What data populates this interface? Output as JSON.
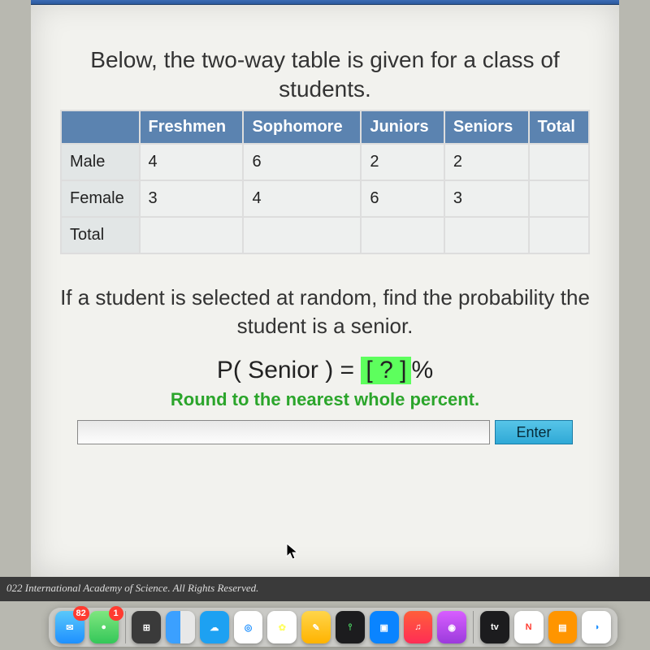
{
  "heading1": "Below, the two-way table is given for a class of students.",
  "table": {
    "columns": [
      "",
      "Freshmen",
      "Sophomore",
      "Juniors",
      "Seniors",
      "Total"
    ],
    "rows": [
      [
        "Male",
        "4",
        "6",
        "2",
        "2",
        ""
      ],
      [
        "Female",
        "3",
        "4",
        "6",
        "3",
        ""
      ],
      [
        "Total",
        "",
        "",
        "",
        "",
        ""
      ]
    ],
    "header_bg": "#5b83b0",
    "header_fg": "#ffffff",
    "cell_bg": "#eef0ef",
    "rowhead_bg": "#e2e6e6",
    "border_color": "#dddddd",
    "font_size": 20
  },
  "heading2": "If a student is selected at random, find the probability the student is a senior.",
  "formula_prefix": "P( Senior ) = ",
  "formula_answer_placeholder": "[ ? ]",
  "formula_suffix": "%",
  "hint": "Round to the nearest whole percent.",
  "enter_label": "Enter",
  "answer_value": "",
  "copyright": "022 International Academy of Science. All Rights Reserved.",
  "answerbox_bg": "#5dff5d",
  "hint_color": "#2ba52b",
  "screen_bg": "#f2f2ee",
  "dock": {
    "apps": [
      {
        "name": "mail-icon",
        "bg": "linear-gradient(#5ac8fa,#1e90ff)",
        "glyph": "✉",
        "badge": "82"
      },
      {
        "name": "messages-icon",
        "bg": "linear-gradient(#7fe67f,#34c759)",
        "glyph": "●",
        "badge": "1"
      },
      {
        "name": "calculator-icon",
        "bg": "#3a3a3a",
        "glyph": "⊞"
      },
      {
        "name": "finder-icon",
        "bg": "linear-gradient(90deg,#3ba0ff 50%,#e8e8e8 50%)",
        "glyph": ""
      },
      {
        "name": "chat-icon",
        "bg": "#1da1f2",
        "glyph": "☁"
      },
      {
        "name": "safari-icon",
        "bg": "#ffffff",
        "glyph": "◎",
        "fg": "#1e90ff"
      },
      {
        "name": "photos-icon",
        "bg": "#ffffff",
        "glyph": "✿",
        "fg": "#ff6"
      },
      {
        "name": "notes-icon",
        "bg": "linear-gradient(#ffd54a,#ffb300)",
        "glyph": "✎"
      },
      {
        "name": "stocks-icon",
        "bg": "#1c1c1e",
        "glyph": "⫯",
        "fg": "#4cd964"
      },
      {
        "name": "keynote-icon",
        "bg": "#0a84ff",
        "glyph": "▣"
      },
      {
        "name": "music-icon",
        "bg": "linear-gradient(#ff5e3a,#ff2d55)",
        "glyph": "♫"
      },
      {
        "name": "podcasts-icon",
        "bg": "linear-gradient(#d85eff,#9b3bdc)",
        "glyph": "◉"
      },
      {
        "name": "tv-icon",
        "bg": "#1c1c1e",
        "glyph": "tv"
      },
      {
        "name": "news-icon",
        "bg": "#ffffff",
        "glyph": "N",
        "fg": "#ff3b30"
      },
      {
        "name": "books-icon",
        "bg": "#ff9500",
        "glyph": "▤"
      },
      {
        "name": "compass-icon",
        "bg": "#ffffff",
        "glyph": "◑",
        "fg": "#1e90ff"
      }
    ]
  }
}
